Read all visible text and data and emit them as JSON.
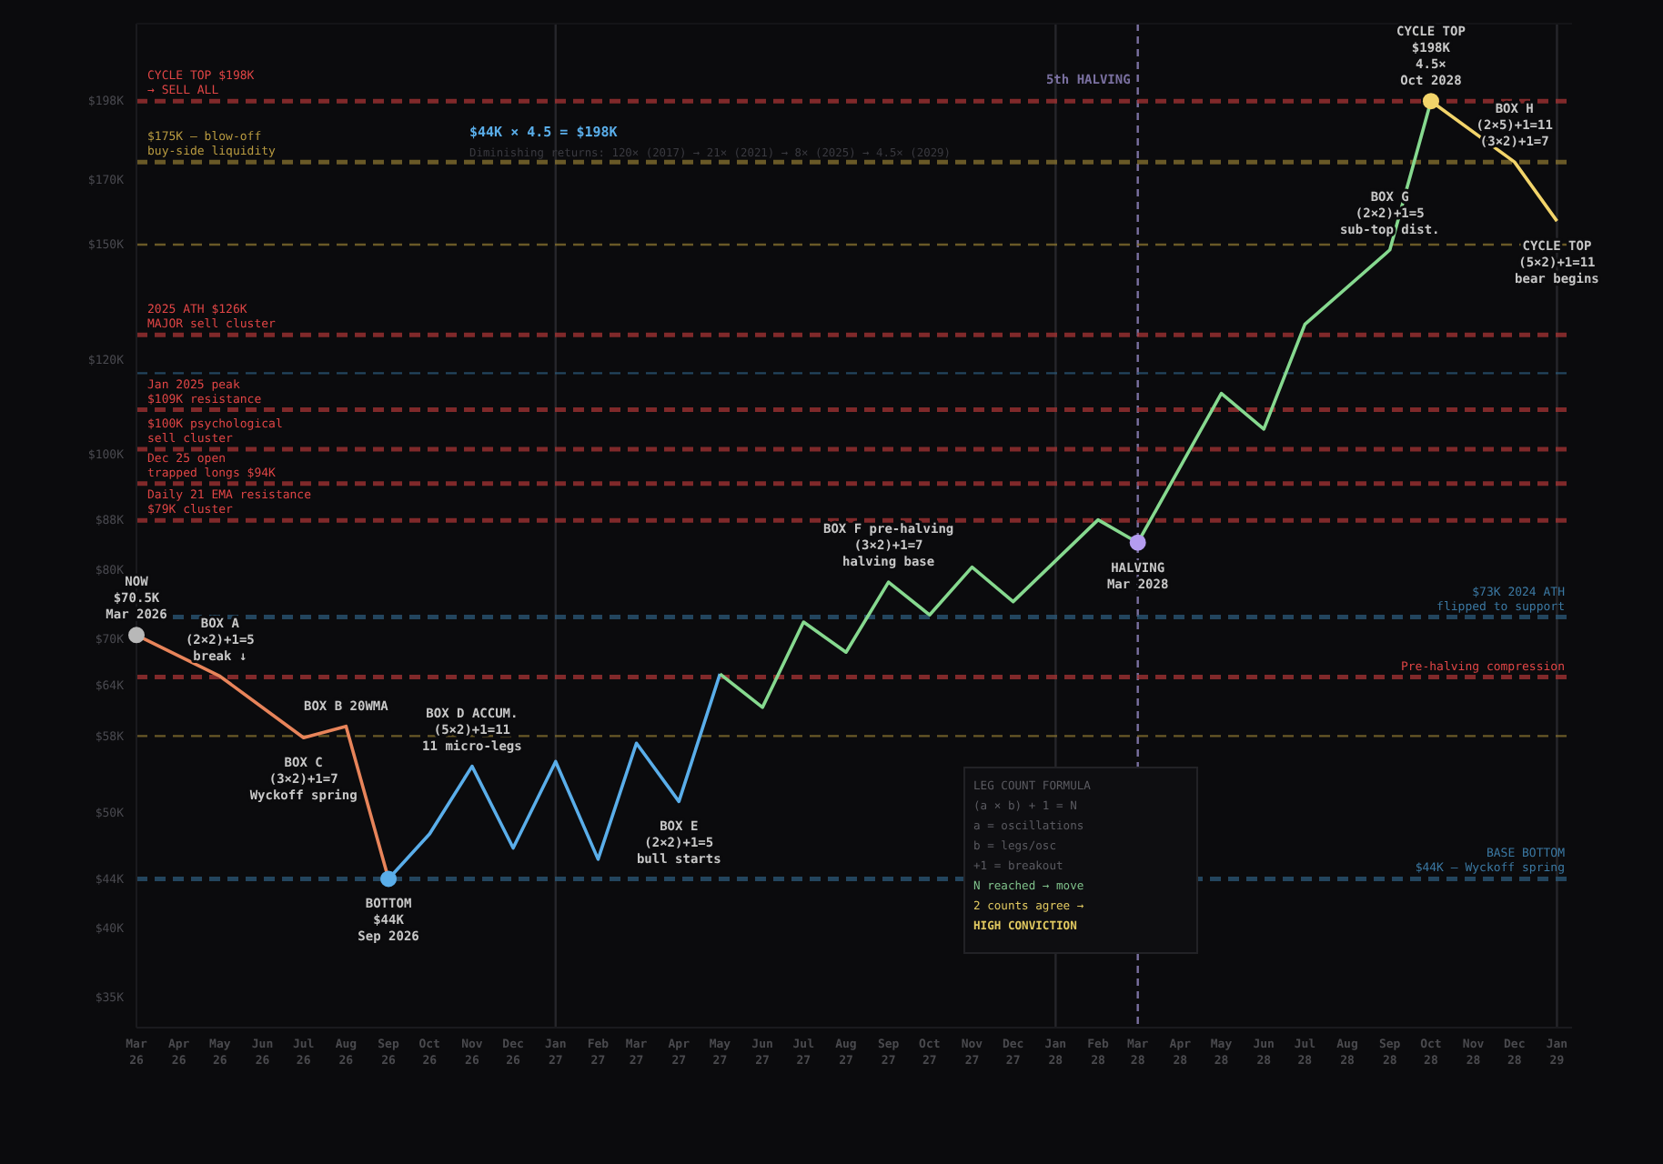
{
  "chart_data": {
    "type": "line",
    "title": "$44K × 4.5 = $198K",
    "subtitle": "Diminishing returns: 120× (2017) → 21× (2021) → 8× (2025) → 4.5× (2029)",
    "log": "y",
    "xlim": [
      "2026-03",
      "2029-01-12"
    ],
    "ylim": [
      33,
      230
    ],
    "xticks": [
      {
        "value": "2026-03",
        "label": "Mar 26"
      },
      {
        "value": "2026-04",
        "label": "Apr 26"
      },
      {
        "value": "2026-05",
        "label": "May 26"
      },
      {
        "value": "2026-06",
        "label": "Jun 26"
      },
      {
        "value": "2026-07",
        "label": "Jul 26"
      },
      {
        "value": "2026-08",
        "label": "Aug 26"
      },
      {
        "value": "2026-09",
        "label": "Sep 26"
      },
      {
        "value": "2026-10",
        "label": "Oct 26"
      },
      {
        "value": "2026-11",
        "label": "Nov 26"
      },
      {
        "value": "2026-12",
        "label": "Dec 26"
      },
      {
        "value": "2027-01",
        "label": "Jan 27"
      },
      {
        "value": "2027-02",
        "label": "Feb 27"
      },
      {
        "value": "2027-03",
        "label": "Mar 27"
      },
      {
        "value": "2027-04",
        "label": "Apr 27"
      },
      {
        "value": "2027-05",
        "label": "May 27"
      },
      {
        "value": "2027-06",
        "label": "Jun 27"
      },
      {
        "value": "2027-07",
        "label": "Jul 27"
      },
      {
        "value": "2027-08",
        "label": "Aug 27"
      },
      {
        "value": "2027-09",
        "label": "Sep 27"
      },
      {
        "value": "2027-10",
        "label": "Oct 27"
      },
      {
        "value": "2027-11",
        "label": "Nov 27"
      },
      {
        "value": "2027-12",
        "label": "Dec 27"
      },
      {
        "value": "2028-01",
        "label": "Jan 28"
      },
      {
        "value": "2028-02",
        "label": "Feb 28"
      },
      {
        "value": "2028-03",
        "label": "Mar 28"
      },
      {
        "value": "2028-04",
        "label": "Apr 28"
      },
      {
        "value": "2028-05",
        "label": "May 28"
      },
      {
        "value": "2028-06",
        "label": "Jun 28"
      },
      {
        "value": "2028-07",
        "label": "Jul 28"
      },
      {
        "value": "2028-08",
        "label": "Aug 28"
      },
      {
        "value": "2028-09",
        "label": "Sep 28"
      },
      {
        "value": "2028-10",
        "label": "Oct 28"
      },
      {
        "value": "2028-11",
        "label": "Nov 28"
      },
      {
        "value": "2028-12",
        "label": "Dec 28"
      },
      {
        "value": "2029-01",
        "label": "Jan 29"
      }
    ],
    "yticks": [
      {
        "value": 198,
        "label": "$198K"
      },
      {
        "value": 170,
        "label": "$170K"
      },
      {
        "value": 150,
        "label": "$150K"
      },
      {
        "value": 120,
        "label": "$120K"
      },
      {
        "value": 100,
        "label": "$100K"
      },
      {
        "value": 88,
        "label": "$88K"
      },
      {
        "value": 80,
        "label": "$80K"
      },
      {
        "value": 70,
        "label": "$70K"
      },
      {
        "value": 64,
        "label": "$64K"
      },
      {
        "value": 58,
        "label": "$58K"
      },
      {
        "value": 50,
        "label": "$50K"
      },
      {
        "value": 44,
        "label": "$44K"
      },
      {
        "value": 40,
        "label": "$40K"
      },
      {
        "value": 35,
        "label": "$35K"
      }
    ],
    "series": [
      {
        "color": "#e8845a",
        "x": [
          "2026-03",
          "2026-05",
          "2026-07",
          "2026-08",
          "2026-09"
        ],
        "values": [
          70.5,
          65.1,
          57.8,
          59.1,
          44
        ]
      },
      {
        "color": "#5aaeea",
        "x": [
          "2026-09",
          "2026-10",
          "2026-11",
          "2026-12",
          "2027-01",
          "2027-02",
          "2027-03",
          "2027-04",
          "2027-05"
        ],
        "values": [
          44,
          48,
          54.7,
          46.7,
          55.2,
          45.7,
          57.2,
          51.1,
          65.4
        ]
      },
      {
        "color": "#86d98f",
        "x": [
          "2027-05",
          "2027-06",
          "2027-07",
          "2027-08",
          "2027-09",
          "2027-10",
          "2027-11",
          "2027-12",
          "2028-02",
          "2028-03",
          "2028-05",
          "2028-06",
          "2028-07",
          "2028-09",
          "2028-10"
        ],
        "values": [
          65.4,
          61.3,
          72.3,
          68.2,
          78.1,
          73.3,
          80.4,
          75.2,
          88.1,
          84.3,
          112.5,
          105,
          128.6,
          148.5,
          198
        ]
      },
      {
        "color": "#f2d46a",
        "x": [
          "2028-10",
          "2028-12",
          "2029-01"
        ],
        "values": [
          198,
          176,
          157
        ]
      },
      {
        "type": "scatter",
        "x": [
          "2026-03",
          "2026-09",
          "2028-03",
          "2028-10"
        ],
        "values": [
          70.5,
          44,
          84.3,
          198
        ],
        "colors": [
          "#b8b8b8",
          "#5aaeea",
          "#b49cf0",
          "#f2d46a"
        ]
      }
    ],
    "ref_lines": [
      {
        "axis": "x",
        "value": "2027-01",
        "color": "#26262b",
        "line_style": "solid"
      },
      {
        "axis": "x",
        "value": "2028-01",
        "color": "#26262b",
        "line_style": "solid"
      },
      {
        "axis": "x",
        "value": "2029-01",
        "color": "#26262b",
        "line_style": "solid"
      },
      {
        "axis": "x",
        "value": "2028-03",
        "label": "5th HALVING",
        "color": "#7a70a0",
        "line_style": "dashed"
      },
      {
        "axis": "y",
        "value": 198,
        "label": "CYCLE TOP $198K\n→ SELL ALL",
        "color": "#a83434",
        "line_style": "dashed"
      },
      {
        "axis": "y",
        "value": 176,
        "label": "$175K — blow-off\nbuy-side liquidity",
        "color": "#8a7430",
        "line_style": "dashed"
      },
      {
        "axis": "y",
        "value": 150,
        "color": "#8a7430",
        "line_style": "dashed"
      },
      {
        "axis": "y",
        "value": 126,
        "label": "2025 ATH $126K\nMAJOR sell cluster",
        "color": "#a83434",
        "line_style": "dashed"
      },
      {
        "axis": "y",
        "value": 117,
        "color": "#2c5a7a",
        "line_style": "dashed"
      },
      {
        "axis": "y",
        "value": 109,
        "label": "Jan 2025 peak\n$109K resistance",
        "color": "#a83434",
        "line_style": "dashed"
      },
      {
        "axis": "y",
        "value": 101,
        "label": "$100K psychological\nsell cluster",
        "color": "#a83434",
        "line_style": "dashed"
      },
      {
        "axis": "y",
        "value": 94.5,
        "label": "Dec 25 open\ntrapped longs $94K",
        "color": "#a83434",
        "line_style": "dashed"
      },
      {
        "axis": "y",
        "value": 88,
        "label": "Daily 21 EMA resistance\n$79K cluster",
        "color": "#a83434",
        "line_style": "dashed"
      },
      {
        "axis": "y",
        "value": 73,
        "label": "$73K 2024 ATH\nflipped to support",
        "color": "#2c5a7a",
        "line_style": "dashed"
      },
      {
        "axis": "y",
        "value": 65,
        "label": "Pre-halving compression",
        "color": "#a83434",
        "line_style": "dashed"
      },
      {
        "axis": "y",
        "value": 58,
        "color": "#8a7430",
        "line_style": "dashed"
      },
      {
        "axis": "y",
        "value": 44,
        "label": "BASE BOTTOM\n$44K — Wyckoff spring",
        "color": "#2c5a7a",
        "line_style": "dashed"
      }
    ],
    "annotations": [
      {
        "text": "NOW\n$70.5K\nMar 2026",
        "x": "2026-03",
        "y": 70.5
      },
      {
        "text": "BOTTOM\n$44K\nSep 2026",
        "x": "2026-09",
        "y": 44
      },
      {
        "text": "HALVING\nMar 2028",
        "x": "2028-03",
        "y": 84.3
      },
      {
        "text": "CYCLE TOP\n$198K\n4.5×\nOct 2028",
        "x": "2028-10",
        "y": 198
      },
      {
        "text": "BOX A\n(2×2)+1=5\nbreak ↓",
        "x": "2026-05",
        "y": 65.1
      },
      {
        "text": "BOX B  20WMA",
        "x": "2026-08",
        "y": 59.1
      },
      {
        "text": "BOX C\n(3×2)+1=7\nWyckoff spring",
        "x": "2026-07",
        "y": 57.8
      },
      {
        "text": "BOX D  ACCUM.\n(5×2)+1=11\n11 micro-legs",
        "x": "2026-11",
        "y": 54.7
      },
      {
        "text": "BOX E\n(2×2)+1=5\nbull starts",
        "x": "2027-04",
        "y": 51.1
      },
      {
        "text": "BOX F  pre-halving\n(3×2)+1=7\nhalving base",
        "x": "2027-09",
        "y": 78.1
      },
      {
        "text": "BOX G\n(2×2)+1=5\nsub-top dist.",
        "x": "2028-09",
        "y": 148.5
      },
      {
        "text": "BOX H\n(2×5)+1=11\n(3×2)+1=7",
        "x": "2028-12",
        "y": 176
      },
      {
        "text": "CYCLE TOP\n(5×2)+1=11\nbear begins",
        "x": "2029-01",
        "y": 157
      },
      "LEG COUNT FORMULA",
      "(a × b) + 1 = N",
      "a = oscillations",
      "b = legs/osc",
      "+1 = breakout",
      "N reached → move",
      "2 counts agree →",
      "HIGH CONVICTION"
    ]
  }
}
